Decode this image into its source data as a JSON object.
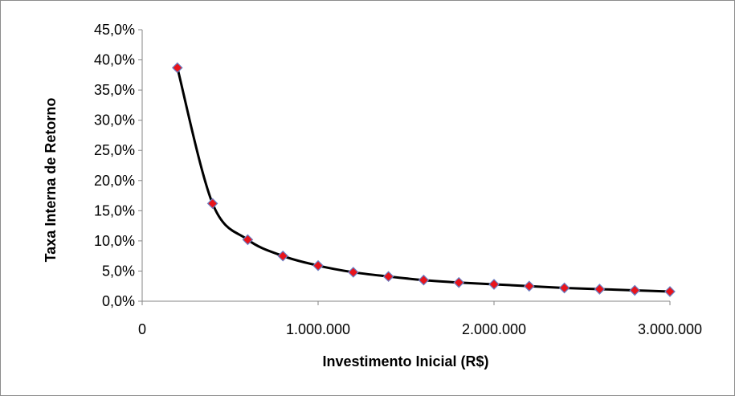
{
  "chart_data": {
    "type": "line",
    "xlabel": "Investimento Inicial (R$)",
    "ylabel": "Taxa Interna de Retorno",
    "xlim": [
      0,
      3000000
    ],
    "ylim": [
      0,
      45
    ],
    "x_ticks": [
      0,
      1000000,
      2000000,
      3000000
    ],
    "x_tick_labels": [
      "0",
      "1.000.000",
      "2.000.000",
      "3.000.000"
    ],
    "y_ticks": [
      0,
      5,
      10,
      15,
      20,
      25,
      30,
      35,
      40,
      45
    ],
    "y_tick_labels": [
      "0,0%",
      "5,0%",
      "10,0%",
      "15,0%",
      "20,0%",
      "25,0%",
      "30,0%",
      "35,0%",
      "40,0%",
      "45,0%"
    ],
    "grid": false,
    "legend": "none",
    "line_color": "#000000",
    "marker": "diamond",
    "marker_fill": "#e8141b",
    "marker_edge": "#6b7fc4",
    "series": [
      {
        "x": [
          200000,
          400000,
          600000,
          800000,
          1000000,
          1200000,
          1400000,
          1600000,
          1800000,
          2000000,
          2200000,
          2400000,
          2600000,
          2800000,
          3000000
        ],
        "values": [
          38.7,
          16.2,
          10.2,
          7.5,
          5.9,
          4.8,
          4.1,
          3.5,
          3.1,
          2.8,
          2.5,
          2.2,
          2.0,
          1.8,
          1.6
        ]
      }
    ]
  }
}
